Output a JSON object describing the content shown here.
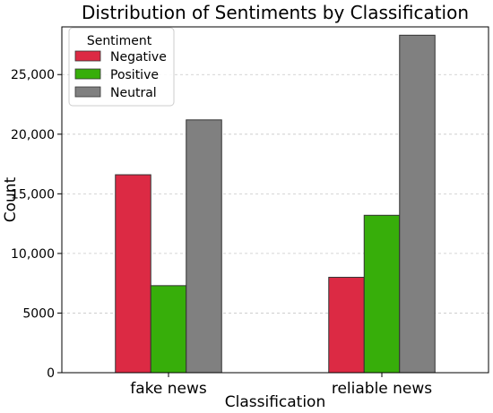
{
  "chart_data": {
    "type": "bar",
    "title": "Distribution of Sentiments by Classification",
    "xlabel": "Classification",
    "ylabel": "Count",
    "categories": [
      "fake news",
      "reliable news"
    ],
    "series": [
      {
        "name": "Negative",
        "values": [
          16600,
          8000
        ],
        "color": "#dc2a44"
      },
      {
        "name": "Positive",
        "values": [
          7300,
          13200
        ],
        "color": "#37ae0a"
      },
      {
        "name": "Neutral",
        "values": [
          21200,
          28300
        ],
        "color": "#808080"
      }
    ],
    "ylim": [
      0,
      29000
    ],
    "yticks": [
      {
        "value": 0,
        "label": "0"
      },
      {
        "value": 5000,
        "label": "5000"
      },
      {
        "value": 10000,
        "label": "10,000"
      },
      {
        "value": 15000,
        "label": "15,000"
      },
      {
        "value": 20000,
        "label": "20,000"
      },
      {
        "value": 25000,
        "label": "25,000"
      }
    ],
    "grid": "y-dashed",
    "legend": {
      "title": "Sentiment",
      "placement": "top-left"
    }
  }
}
